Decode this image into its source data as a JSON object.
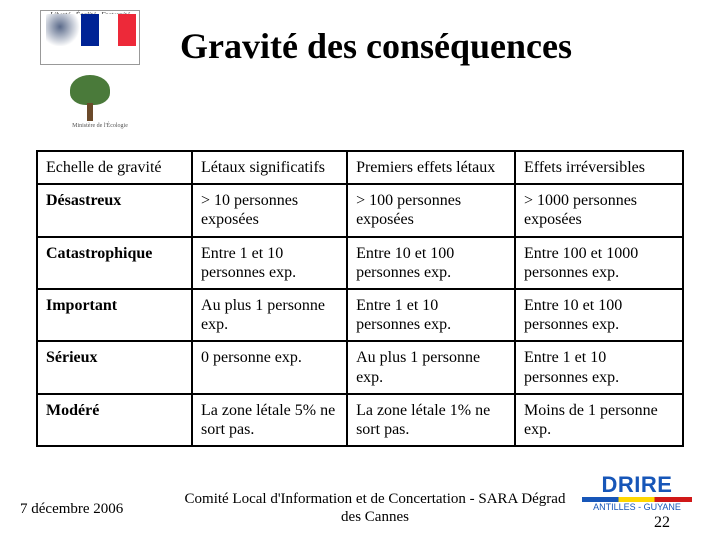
{
  "title": "Gravité des conséquences",
  "logo": {
    "motto": "Liberté · Égalité · Fraternité",
    "rf": "RÉPUBLIQUE FRANÇAISE",
    "ministry": "Ministère de l'Écologie"
  },
  "table": {
    "columns": [
      "Echelle de gravité",
      "Létaux significatifs",
      "Premiers effets létaux",
      "Effets irréversibles"
    ],
    "rows": [
      {
        "label": "Désastreux",
        "cells": [
          "> 10 personnes exposées",
          "> 100 personnes exposées",
          "> 1000 personnes exposées"
        ]
      },
      {
        "label": "Catastrophique",
        "cells": [
          "Entre 1 et 10 personnes exp.",
          "Entre 10  et 100 personnes exp.",
          "Entre 100 et 1000 personnes exp."
        ]
      },
      {
        "label": "Important",
        "cells": [
          "Au plus 1 personne exp.",
          "Entre 1 et 10 personnes exp.",
          "Entre 10 et 100 personnes exp."
        ]
      },
      {
        "label": "Sérieux",
        "cells": [
          "0 personne exp.",
          "Au plus 1 personne exp.",
          "Entre 1 et 10 personnes exp."
        ]
      },
      {
        "label": "Modéré",
        "cells": [
          "La zone létale 5% ne sort pas.",
          "La zone létale 1% ne sort pas.",
          "Moins de 1 personne exp."
        ]
      }
    ]
  },
  "footer": {
    "date": "7 décembre 2006",
    "center": "Comité Local d'Information et de Concertation - SARA Dégrad des Cannes",
    "drire": "DRIRE",
    "drire_sub": "ANTILLES - GUYANE",
    "page": "22"
  }
}
